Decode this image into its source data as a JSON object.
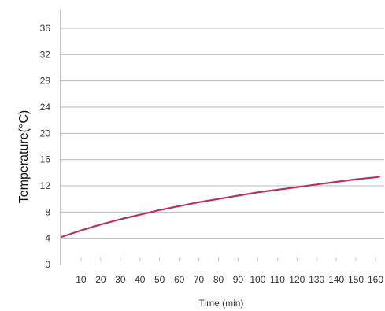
{
  "chart_data": {
    "type": "line",
    "title": "",
    "xlabel": "Time (min)",
    "ylabel": "Temperature(°C)",
    "xlim": [
      0,
      162
    ],
    "ylim": [
      0,
      38
    ],
    "x_ticks": [
      10,
      20,
      30,
      40,
      50,
      60,
      70,
      80,
      90,
      100,
      110,
      120,
      130,
      140,
      150,
      160
    ],
    "y_ticks": [
      0,
      4,
      8,
      12,
      16,
      20,
      24,
      28,
      32,
      36
    ],
    "grid": true,
    "series": [
      {
        "color": "#b5335e",
        "x": [
          0,
          10,
          20,
          30,
          40,
          50,
          60,
          70,
          80,
          90,
          100,
          110,
          120,
          130,
          140,
          150,
          160,
          162
        ],
        "y": [
          4.2,
          5.2,
          6.1,
          6.9,
          7.6,
          8.3,
          8.9,
          9.5,
          10.0,
          10.5,
          11.0,
          11.4,
          11.8,
          12.2,
          12.6,
          13.0,
          13.3,
          13.4
        ]
      }
    ]
  }
}
